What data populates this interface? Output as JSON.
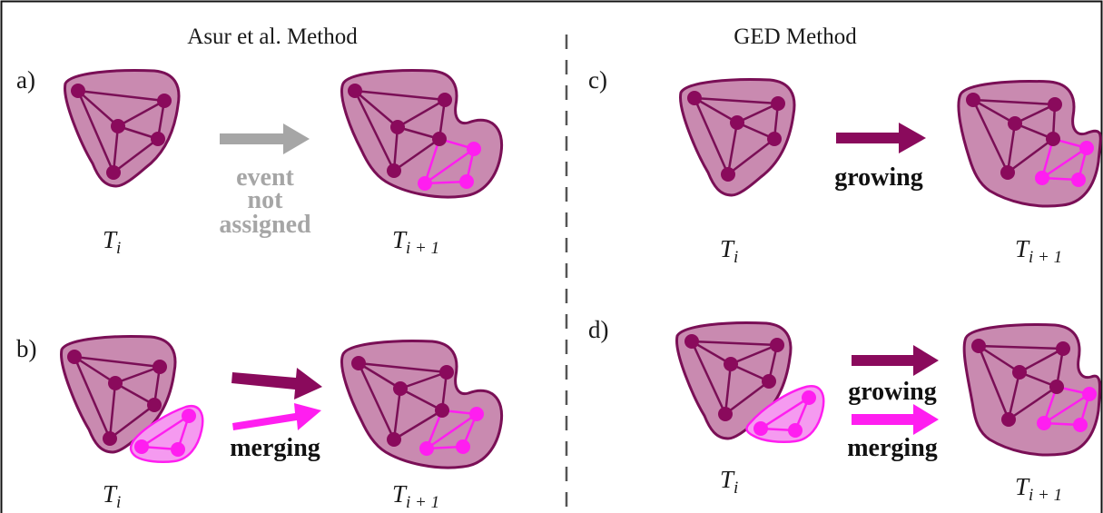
{
  "headers": {
    "left": "Asur et al. Method",
    "right": "GED Method"
  },
  "panel_labels": [
    "a)",
    "b)",
    "c)",
    "d)"
  ],
  "time_labels": {
    "before": {
      "base": "T",
      "sub": "i"
    },
    "after": {
      "base": "T",
      "sub": "i + 1"
    }
  },
  "events": {
    "a": [
      "event",
      "not",
      "assigned"
    ],
    "b": [
      "merging"
    ],
    "c": [
      "growing"
    ],
    "d": [
      "growing",
      "merging"
    ]
  },
  "colors": {
    "community_fill": "#c98ab0",
    "community_stroke": "#7a0f56",
    "node_dark": "#8a0a5c",
    "node_bright": "#ff1ef0",
    "small_fill": "#f59af0",
    "arrow_grey": "#a6a6a6",
    "arrow_dark": "#8a0a5c",
    "arrow_bright": "#ff1ef0",
    "divider": "#555555"
  }
}
